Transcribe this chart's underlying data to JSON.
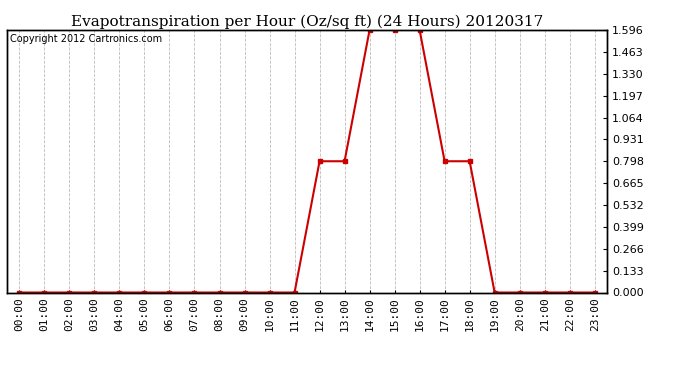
{
  "title": "Evapotranspiration per Hour (Oz/sq ft) (24 Hours) 20120317",
  "copyright": "Copyright 2012 Cartronics.com",
  "x_labels": [
    "00:00",
    "01:00",
    "02:00",
    "03:00",
    "04:00",
    "05:00",
    "06:00",
    "07:00",
    "08:00",
    "09:00",
    "10:00",
    "11:00",
    "12:00",
    "13:00",
    "14:00",
    "15:00",
    "16:00",
    "17:00",
    "18:00",
    "19:00",
    "20:00",
    "21:00",
    "22:00",
    "23:00"
  ],
  "x_values": [
    0,
    1,
    2,
    3,
    4,
    5,
    6,
    7,
    8,
    9,
    10,
    11,
    12,
    13,
    14,
    15,
    16,
    17,
    18,
    19,
    20,
    21,
    22,
    23
  ],
  "y_values": [
    0.0,
    0.0,
    0.0,
    0.0,
    0.0,
    0.0,
    0.0,
    0.0,
    0.0,
    0.0,
    0.0,
    0.0,
    0.798,
    0.798,
    1.596,
    1.596,
    1.596,
    0.798,
    0.798,
    0.0,
    0.0,
    0.0,
    0.0,
    0.0
  ],
  "y_ticks": [
    0.0,
    0.133,
    0.266,
    0.399,
    0.532,
    0.665,
    0.798,
    0.931,
    1.064,
    1.197,
    1.33,
    1.463,
    1.596
  ],
  "line_color": "#cc0000",
  "marker": "s",
  "marker_size": 3,
  "background_color": "#ffffff",
  "plot_bg_color": "#ffffff",
  "grid_color": "#bbbbbb",
  "title_fontsize": 11,
  "tick_fontsize": 8,
  "copyright_fontsize": 7,
  "ylim": [
    0.0,
    1.596
  ],
  "xlim": [
    -0.5,
    23.5
  ]
}
